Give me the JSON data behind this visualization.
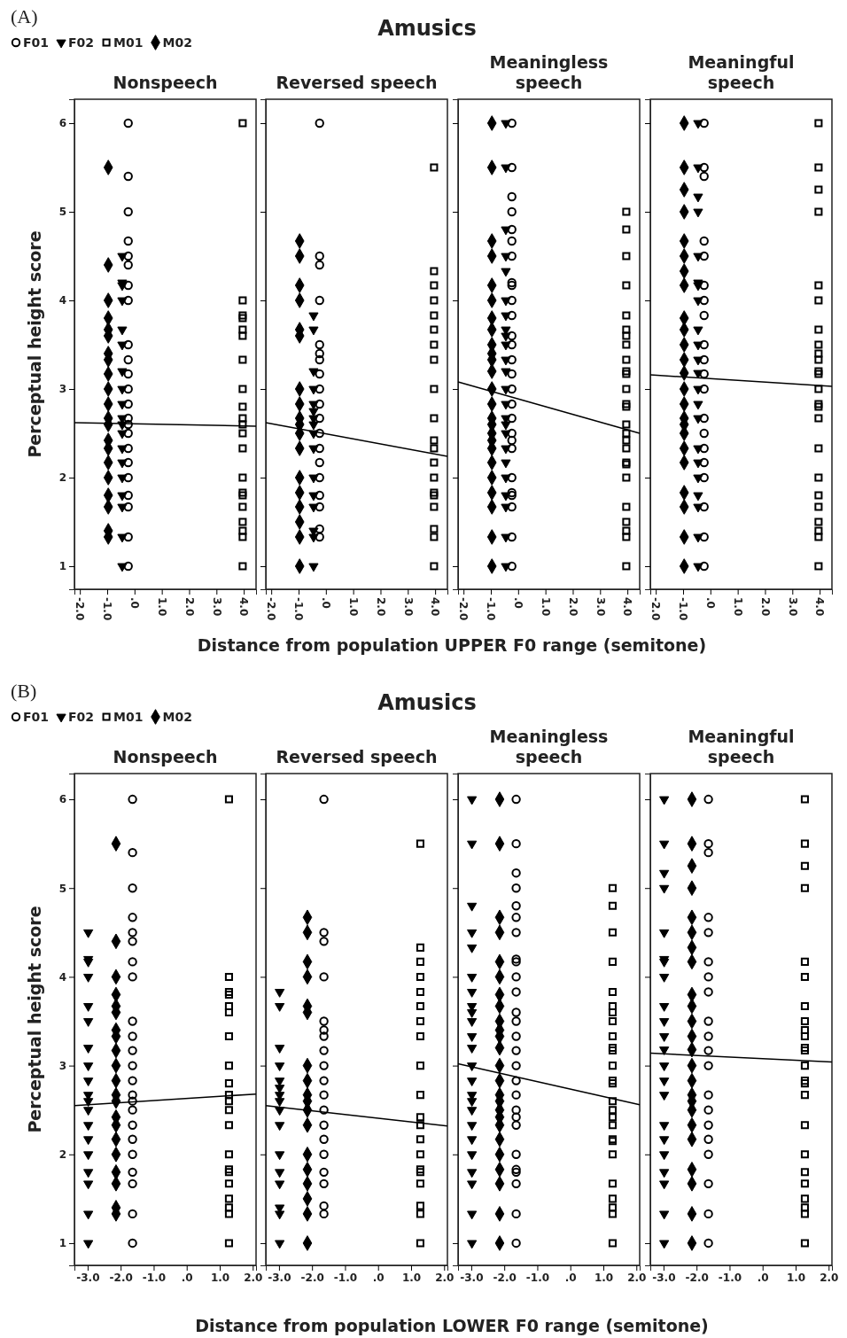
{
  "chart_data": [
    {
      "type": "scatter",
      "subtitle": "Nonspeech",
      "xlabel": "Distance from population UPPER F0 range (semitone)",
      "ylabel": "Perceptual height score",
      "annotations": [
        "(A)"
      ],
      "legend": "top left",
      "xlim": [
        -2.2,
        4.45
      ],
      "xticks": [
        {
          "value": -2,
          "label": "-2.0"
        },
        {
          "value": -1,
          "label": "-1.0"
        },
        {
          "value": 0,
          "label": ".0"
        },
        {
          "value": 1,
          "label": "1.0"
        },
        {
          "value": 2,
          "label": "2.0"
        },
        {
          "value": 3,
          "label": "3.0"
        },
        {
          "value": 4,
          "label": "4.0"
        }
      ],
      "ylim": [
        0.74,
        6.27
      ],
      "yticks": [
        1,
        2,
        3,
        4,
        5,
        6
      ],
      "series": [
        {
          "name": "F01",
          "color": "#000000",
          "marker": "circle",
          "x": [
            -0.23,
            -0.23,
            -0.23,
            -0.23,
            -0.23,
            -0.23,
            -0.23,
            -0.23,
            -0.23,
            -0.23,
            -0.23,
            -0.23,
            -0.23,
            -0.23,
            -0.23,
            -0.23,
            -0.23,
            -0.23,
            -0.23,
            -0.23,
            -0.23,
            -0.23,
            -0.23
          ],
          "values": [
            6,
            5.4,
            5,
            4.67,
            4.5,
            4.4,
            4.17,
            4,
            3.5,
            3.33,
            3.17,
            3,
            2.83,
            2.67,
            2.6,
            2.5,
            2.33,
            2.17,
            2,
            1.8,
            1.67,
            1.33,
            1
          ]
        },
        {
          "name": "F02",
          "color": "#000000",
          "marker": "triangle",
          "x": [
            -0.45,
            -0.45,
            -0.45,
            -0.45,
            -0.45,
            -0.45,
            -0.45,
            -0.45,
            -0.45,
            -0.45,
            -0.45,
            -0.45,
            -0.45,
            -0.45,
            -0.45,
            -0.45,
            -0.45,
            -0.45,
            -0.45
          ],
          "values": [
            4.5,
            4.2,
            4.17,
            4,
            3.67,
            3.5,
            3.2,
            3,
            2.83,
            2.67,
            2.6,
            2.5,
            2.33,
            2.17,
            2,
            1.8,
            1.67,
            1.33,
            1
          ]
        },
        {
          "name": "M01",
          "color": "#000000",
          "marker": "square",
          "x": [
            3.96,
            3.96,
            3.96,
            3.96,
            3.96,
            3.96,
            3.96,
            3.96,
            3.96,
            3.96,
            3.96,
            3.96,
            3.96,
            3.96,
            3.96,
            3.96,
            3.96,
            3.96,
            3.96,
            3.96,
            3.96
          ],
          "values": [
            6,
            4,
            3.83,
            3.8,
            3.67,
            3.6,
            3.33,
            3,
            2.8,
            2.67,
            2.6,
            2.5,
            2.33,
            2,
            1.83,
            1.8,
            1.67,
            1.5,
            1.4,
            1.33,
            1
          ]
        },
        {
          "name": "M02",
          "color": "#000000",
          "marker": "diamond",
          "x": [
            -0.96,
            -0.96,
            -0.96,
            -0.96,
            -0.96,
            -0.96,
            -0.96,
            -0.96,
            -0.96,
            -0.96,
            -0.96,
            -0.96,
            -0.96,
            -0.96,
            -0.96,
            -0.96,
            -0.96,
            -0.96,
            -0.96,
            -0.96,
            -0.96
          ],
          "values": [
            5.5,
            4.4,
            4,
            3.8,
            3.67,
            3.6,
            3.4,
            3.33,
            3.17,
            3,
            2.83,
            2.67,
            2.6,
            2.42,
            2.33,
            2.17,
            2,
            1.8,
            1.67,
            1.4,
            1.33
          ]
        },
        {
          "type": "line",
          "color": "#000000",
          "x": [
            -2.2,
            4.45
          ],
          "values": [
            2.62,
            2.58
          ]
        }
      ]
    },
    {
      "type": "scatter",
      "title": "Amusics",
      "subtitle": "Reversed speech",
      "tick_labels": "x",
      "xlim": [
        -2.2,
        4.45
      ],
      "xticks": [
        {
          "value": -2,
          "label": "-2.0"
        },
        {
          "value": -1,
          "label": "-1.0"
        },
        {
          "value": 0,
          "label": ".0"
        },
        {
          "value": 1,
          "label": "1.0"
        },
        {
          "value": 2,
          "label": "2.0"
        },
        {
          "value": 3,
          "label": "3.0"
        },
        {
          "value": 4,
          "label": "4.0"
        }
      ],
      "ylim": [
        0.74,
        6.27
      ],
      "yticks": [
        1,
        2,
        3,
        4,
        5,
        6
      ],
      "series": [
        {
          "color": "#000000",
          "marker": "circle",
          "x": [
            -0.23,
            -0.23,
            -0.23,
            -0.23,
            -0.23,
            -0.23,
            -0.23,
            -0.23,
            -0.23,
            -0.23,
            -0.23,
            -0.23,
            -0.23,
            -0.23,
            -0.23,
            -0.23,
            -0.23,
            -0.23,
            -0.23
          ],
          "values": [
            6,
            4.5,
            4.4,
            4,
            3.5,
            3.4,
            3.33,
            3.17,
            3,
            2.83,
            2.67,
            2.5,
            2.33,
            2.17,
            2,
            1.8,
            1.67,
            1.42,
            1.33
          ]
        },
        {
          "color": "#000000",
          "marker": "triangle",
          "x": [
            -0.45,
            -0.45,
            -0.45,
            -0.45,
            -0.45,
            -0.45,
            -0.45,
            -0.45,
            -0.45,
            -0.45,
            -0.45,
            -0.45,
            -0.45,
            -0.45,
            -0.45,
            -0.45
          ],
          "values": [
            3.83,
            3.67,
            3.2,
            3,
            2.83,
            2.75,
            2.67,
            2.6,
            2.5,
            2.33,
            2,
            1.8,
            1.67,
            1.4,
            1.33,
            1
          ]
        },
        {
          "color": "#000000",
          "marker": "square",
          "x": [
            3.96,
            3.96,
            3.96,
            3.96,
            3.96,
            3.96,
            3.96,
            3.96,
            3.96,
            3.96,
            3.96,
            3.96,
            3.96,
            3.96,
            3.96,
            3.96,
            3.96,
            3.96,
            3.96,
            3.96
          ],
          "values": [
            5.5,
            4.33,
            4.17,
            4,
            3.83,
            3.67,
            3.5,
            3.33,
            3,
            2.67,
            2.42,
            2.33,
            2.17,
            2,
            1.83,
            1.8,
            1.67,
            1.42,
            1.33,
            1
          ]
        },
        {
          "color": "#000000",
          "marker": "diamond",
          "x": [
            -0.96,
            -0.96,
            -0.96,
            -0.96,
            -0.96,
            -0.96,
            -0.96,
            -0.96,
            -0.96,
            -0.96,
            -0.96,
            -0.96,
            -0.96,
            -0.96,
            -0.96,
            -0.96,
            -0.96,
            -0.96
          ],
          "values": [
            4.67,
            4.5,
            4.17,
            4,
            3.67,
            3.6,
            3,
            2.83,
            2.67,
            2.6,
            2.5,
            2.33,
            2,
            1.83,
            1.67,
            1.5,
            1.33,
            1
          ]
        },
        {
          "type": "line",
          "color": "#000000",
          "x": [
            -2.2,
            4.45
          ],
          "values": [
            2.62,
            2.24
          ]
        }
      ]
    },
    {
      "type": "scatter",
      "subtitle": "Meaningless speech",
      "tick_labels": "x",
      "xlim": [
        -2.2,
        4.45
      ],
      "xticks": [
        {
          "value": -2,
          "label": "-2.0"
        },
        {
          "value": -1,
          "label": "-1.0"
        },
        {
          "value": 0,
          "label": ".0"
        },
        {
          "value": 1,
          "label": "1.0"
        },
        {
          "value": 2,
          "label": "2.0"
        },
        {
          "value": 3,
          "label": "3.0"
        },
        {
          "value": 4,
          "label": "4.0"
        }
      ],
      "ylim": [
        0.74,
        6.27
      ],
      "yticks": [
        1,
        2,
        3,
        4,
        5,
        6
      ],
      "series": [
        {
          "color": "#000000",
          "marker": "circle",
          "x": [
            -0.23,
            -0.23,
            -0.23,
            -0.23,
            -0.23,
            -0.23,
            -0.23,
            -0.23,
            -0.23,
            -0.23,
            -0.23,
            -0.23,
            -0.23,
            -0.23,
            -0.23,
            -0.23,
            -0.23,
            -0.23,
            -0.23,
            -0.23,
            -0.23,
            -0.23,
            -0.23,
            -0.23,
            -0.23,
            -0.23,
            -0.23
          ],
          "values": [
            6,
            5.5,
            5.17,
            5,
            4.8,
            4.67,
            4.5,
            4.2,
            4.17,
            4,
            3.83,
            3.6,
            3.5,
            3.33,
            3.17,
            3,
            2.83,
            2.67,
            2.5,
            2.42,
            2.33,
            2,
            1.83,
            1.8,
            1.67,
            1.33,
            1
          ]
        },
        {
          "color": "#000000",
          "marker": "triangle",
          "x": [
            -0.45,
            -0.45,
            -0.45,
            -0.45,
            -0.45,
            -0.45,
            -0.45,
            -0.45,
            -0.45,
            -0.45,
            -0.45,
            -0.45,
            -0.45,
            -0.45,
            -0.45,
            -0.45,
            -0.45,
            -0.45,
            -0.45,
            -0.45,
            -0.45,
            -0.45,
            -0.45,
            -0.45
          ],
          "values": [
            6,
            5.5,
            4.8,
            4.5,
            4.33,
            4,
            3.83,
            3.67,
            3.6,
            3.5,
            3.33,
            3.2,
            3,
            2.83,
            2.67,
            2.6,
            2.5,
            2.33,
            2.17,
            2,
            1.8,
            1.67,
            1.33,
            1
          ]
        },
        {
          "color": "#000000",
          "marker": "square",
          "x": [
            3.96,
            3.96,
            3.96,
            3.96,
            3.96,
            3.96,
            3.96,
            3.96,
            3.96,
            3.96,
            3.96,
            3.96,
            3.96,
            3.96,
            3.96,
            3.96,
            3.96,
            3.96,
            3.96,
            3.96,
            3.96,
            3.96,
            3.96,
            3.96,
            3.96,
            3.96
          ],
          "values": [
            5,
            4.8,
            4.5,
            4.17,
            3.83,
            3.67,
            3.6,
            3.5,
            3.33,
            3.2,
            3.17,
            3,
            2.83,
            2.8,
            2.6,
            2.5,
            2.42,
            2.33,
            2.17,
            2.15,
            2,
            1.67,
            1.5,
            1.4,
            1.33,
            1
          ]
        },
        {
          "color": "#000000",
          "marker": "diamond",
          "x": [
            -0.96,
            -0.96,
            -0.96,
            -0.96,
            -0.96,
            -0.96,
            -0.96,
            -0.96,
            -0.96,
            -0.96,
            -0.96,
            -0.96,
            -0.96,
            -0.96,
            -0.96,
            -0.96,
            -0.96,
            -0.96,
            -0.96,
            -0.96,
            -0.96,
            -0.96,
            -0.96,
            -0.96,
            -0.96
          ],
          "values": [
            6,
            5.5,
            4.67,
            4.5,
            4.17,
            4,
            3.8,
            3.67,
            3.5,
            3.4,
            3.33,
            3.2,
            3,
            2.83,
            2.67,
            2.6,
            2.5,
            2.42,
            2.33,
            2.17,
            2,
            1.83,
            1.67,
            1.33,
            1
          ]
        },
        {
          "type": "line",
          "color": "#000000",
          "x": [
            -2.2,
            4.45
          ],
          "values": [
            3.08,
            2.5
          ]
        }
      ]
    },
    {
      "type": "scatter",
      "subtitle": "Meaningful speech",
      "tick_labels": "x",
      "xlim": [
        -2.2,
        4.45
      ],
      "xticks": [
        {
          "value": -2,
          "label": "-2.0"
        },
        {
          "value": -1,
          "label": "-1.0"
        },
        {
          "value": 0,
          "label": ".0"
        },
        {
          "value": 1,
          "label": "1.0"
        },
        {
          "value": 2,
          "label": "2.0"
        },
        {
          "value": 3,
          "label": "3.0"
        },
        {
          "value": 4,
          "label": "4.0"
        }
      ],
      "ylim": [
        0.74,
        6.27
      ],
      "yticks": [
        1,
        2,
        3,
        4,
        5,
        6
      ],
      "series": [
        {
          "color": "#000000",
          "marker": "circle",
          "x": [
            -0.23,
            -0.23,
            -0.23,
            -0.23,
            -0.23,
            -0.23,
            -0.23,
            -0.23,
            -0.23,
            -0.23,
            -0.23,
            -0.23,
            -0.23,
            -0.23,
            -0.23,
            -0.23,
            -0.23,
            -0.23,
            -0.23,
            -0.23
          ],
          "values": [
            6,
            5.5,
            5.4,
            4.67,
            4.5,
            4.17,
            4,
            3.83,
            3.5,
            3.33,
            3.17,
            3,
            2.67,
            2.5,
            2.33,
            2.17,
            2,
            1.67,
            1.33,
            1
          ]
        },
        {
          "color": "#000000",
          "marker": "triangle",
          "x": [
            -0.45,
            -0.45,
            -0.45,
            -0.45,
            -0.45,
            -0.45,
            -0.45,
            -0.45,
            -0.45,
            -0.45,
            -0.45,
            -0.45,
            -0.45,
            -0.45,
            -0.45,
            -0.45,
            -0.45,
            -0.45,
            -0.45,
            -0.45,
            -0.45,
            -0.45
          ],
          "values": [
            6,
            5.5,
            5.17,
            5,
            4.5,
            4.2,
            4.17,
            4,
            3.67,
            3.5,
            3.33,
            3.18,
            3,
            2.83,
            2.67,
            2.33,
            2.17,
            2,
            1.8,
            1.67,
            1.33,
            1
          ]
        },
        {
          "color": "#000000",
          "marker": "square",
          "x": [
            3.96,
            3.96,
            3.96,
            3.96,
            3.96,
            3.96,
            3.96,
            3.96,
            3.96,
            3.96,
            3.96,
            3.96,
            3.96,
            3.96,
            3.96,
            3.96,
            3.96,
            3.96,
            3.96,
            3.96,
            3.96,
            3.96,
            3.96,
            3.96
          ],
          "values": [
            6,
            5.5,
            5.25,
            5,
            4.17,
            4,
            3.67,
            3.5,
            3.4,
            3.33,
            3.2,
            3.17,
            3,
            2.83,
            2.8,
            2.67,
            2.33,
            2,
            1.8,
            1.67,
            1.5,
            1.4,
            1.33,
            1
          ]
        },
        {
          "color": "#000000",
          "marker": "diamond",
          "x": [
            -0.96,
            -0.96,
            -0.96,
            -0.96,
            -0.96,
            -0.96,
            -0.96,
            -0.96,
            -0.96,
            -0.96,
            -0.96,
            -0.96,
            -0.96,
            -0.96,
            -0.96,
            -0.96,
            -0.96,
            -0.96,
            -0.96,
            -0.96,
            -0.96,
            -0.96,
            -0.96,
            -0.96
          ],
          "values": [
            6,
            5.5,
            5.25,
            5,
            4.67,
            4.5,
            4.33,
            4.17,
            3.8,
            3.67,
            3.5,
            3.33,
            3.18,
            3,
            2.83,
            2.67,
            2.6,
            2.5,
            2.33,
            2.17,
            1.83,
            1.67,
            1.33,
            1
          ]
        },
        {
          "type": "line",
          "color": "#000000",
          "x": [
            -2.2,
            4.45
          ],
          "values": [
            3.16,
            3.03
          ]
        }
      ]
    },
    {
      "type": "scatter",
      "subtitle": "Nonspeech",
      "xlabel": "Distance from population LOWER F0 range (semitone)",
      "ylabel": "Perceptual height score",
      "annotations": [
        "(B)"
      ],
      "legend": "top left",
      "xlim": [
        -3.4,
        2.1
      ],
      "xticks": [
        {
          "value": -3,
          "label": "-3.0"
        },
        {
          "value": -2,
          "label": "-2.0"
        },
        {
          "value": -1,
          "label": "-1.0"
        },
        {
          "value": 0,
          "label": ".0"
        },
        {
          "value": 1,
          "label": "1.0"
        },
        {
          "value": 2,
          "label": "2.0"
        }
      ],
      "ylim": [
        0.75,
        6.29
      ],
      "yticks": [
        1,
        2,
        3,
        4,
        5,
        6
      ],
      "series": [
        {
          "name": "F01",
          "color": "#000000",
          "marker": "circle",
          "x": [
            -1.64,
            -1.64,
            -1.64,
            -1.64,
            -1.64,
            -1.64,
            -1.64,
            -1.64,
            -1.64,
            -1.64,
            -1.64,
            -1.64,
            -1.64,
            -1.64,
            -1.64,
            -1.64,
            -1.64,
            -1.64,
            -1.64,
            -1.64,
            -1.64,
            -1.64,
            -1.64
          ],
          "values": [
            6,
            5.4,
            5,
            4.67,
            4.5,
            4.4,
            4.17,
            4,
            3.5,
            3.33,
            3.17,
            3,
            2.83,
            2.67,
            2.6,
            2.5,
            2.33,
            2.17,
            2,
            1.8,
            1.67,
            1.33,
            1
          ]
        },
        {
          "name": "F02",
          "color": "#000000",
          "marker": "triangle",
          "x": [
            -2.98,
            -2.98,
            -2.98,
            -2.98,
            -2.98,
            -2.98,
            -2.98,
            -2.98,
            -2.98,
            -2.98,
            -2.98,
            -2.98,
            -2.98,
            -2.98,
            -2.98,
            -2.98,
            -2.98,
            -2.98,
            -2.98
          ],
          "values": [
            4.5,
            4.2,
            4.17,
            4,
            3.67,
            3.5,
            3.2,
            3,
            2.83,
            2.67,
            2.6,
            2.5,
            2.33,
            2.17,
            2,
            1.8,
            1.67,
            1.33,
            1
          ]
        },
        {
          "name": "M01",
          "color": "#000000",
          "marker": "square",
          "x": [
            1.28,
            1.28,
            1.28,
            1.28,
            1.28,
            1.28,
            1.28,
            1.28,
            1.28,
            1.28,
            1.28,
            1.28,
            1.28,
            1.28,
            1.28,
            1.28,
            1.28,
            1.28,
            1.28,
            1.28,
            1.28
          ],
          "values": [
            6,
            4,
            3.83,
            3.8,
            3.67,
            3.6,
            3.33,
            3,
            2.8,
            2.67,
            2.6,
            2.5,
            2.33,
            2,
            1.83,
            1.8,
            1.67,
            1.5,
            1.4,
            1.33,
            1
          ]
        },
        {
          "name": "M02",
          "color": "#000000",
          "marker": "diamond",
          "x": [
            -2.14,
            -2.14,
            -2.14,
            -2.14,
            -2.14,
            -2.14,
            -2.14,
            -2.14,
            -2.14,
            -2.14,
            -2.14,
            -2.14,
            -2.14,
            -2.14,
            -2.14,
            -2.14,
            -2.14,
            -2.14,
            -2.14,
            -2.14,
            -2.14
          ],
          "values": [
            5.5,
            4.4,
            4,
            3.8,
            3.67,
            3.6,
            3.4,
            3.33,
            3.17,
            3,
            2.83,
            2.67,
            2.6,
            2.42,
            2.33,
            2.17,
            2,
            1.8,
            1.67,
            1.4,
            1.33
          ]
        },
        {
          "type": "line",
          "color": "#000000",
          "x": [
            -3.4,
            2.1
          ],
          "values": [
            2.55,
            2.68
          ]
        }
      ]
    },
    {
      "type": "scatter",
      "title": "Amusics",
      "subtitle": "Reversed speech",
      "tick_labels": "x",
      "xlim": [
        -3.4,
        2.1
      ],
      "xticks": [
        {
          "value": -3,
          "label": "-3.0"
        },
        {
          "value": -2,
          "label": "-2.0"
        },
        {
          "value": -1,
          "label": "-1.0"
        },
        {
          "value": 0,
          "label": ".0"
        },
        {
          "value": 1,
          "label": "1.0"
        },
        {
          "value": 2,
          "label": "2.0"
        }
      ],
      "ylim": [
        0.75,
        6.29
      ],
      "yticks": [
        1,
        2,
        3,
        4,
        5,
        6
      ],
      "series": [
        {
          "color": "#000000",
          "marker": "circle",
          "x": [
            -1.64,
            -1.64,
            -1.64,
            -1.64,
            -1.64,
            -1.64,
            -1.64,
            -1.64,
            -1.64,
            -1.64,
            -1.64,
            -1.64,
            -1.64,
            -1.64,
            -1.64,
            -1.64,
            -1.64,
            -1.64,
            -1.64
          ],
          "values": [
            6,
            4.5,
            4.4,
            4,
            3.5,
            3.4,
            3.33,
            3.17,
            3,
            2.83,
            2.67,
            2.5,
            2.33,
            2.17,
            2,
            1.8,
            1.67,
            1.42,
            1.33
          ]
        },
        {
          "color": "#000000",
          "marker": "triangle",
          "x": [
            -2.98,
            -2.98,
            -2.98,
            -2.98,
            -2.98,
            -2.98,
            -2.98,
            -2.98,
            -2.98,
            -2.98,
            -2.98,
            -2.98,
            -2.98,
            -2.98,
            -2.98,
            -2.98
          ],
          "values": [
            3.83,
            3.67,
            3.2,
            3,
            2.83,
            2.75,
            2.67,
            2.6,
            2.5,
            2.33,
            2,
            1.8,
            1.67,
            1.4,
            1.33,
            1
          ]
        },
        {
          "color": "#000000",
          "marker": "square",
          "x": [
            1.28,
            1.28,
            1.28,
            1.28,
            1.28,
            1.28,
            1.28,
            1.28,
            1.28,
            1.28,
            1.28,
            1.28,
            1.28,
            1.28,
            1.28,
            1.28,
            1.28,
            1.28,
            1.28,
            1.28
          ],
          "values": [
            5.5,
            4.33,
            4.17,
            4,
            3.83,
            3.67,
            3.5,
            3.33,
            3,
            2.67,
            2.42,
            2.33,
            2.17,
            2,
            1.83,
            1.8,
            1.67,
            1.42,
            1.33,
            1
          ]
        },
        {
          "color": "#000000",
          "marker": "diamond",
          "x": [
            -2.14,
            -2.14,
            -2.14,
            -2.14,
            -2.14,
            -2.14,
            -2.14,
            -2.14,
            -2.14,
            -2.14,
            -2.14,
            -2.14,
            -2.14,
            -2.14,
            -2.14,
            -2.14,
            -2.14,
            -2.14
          ],
          "values": [
            4.67,
            4.5,
            4.17,
            4,
            3.67,
            3.6,
            3,
            2.83,
            2.67,
            2.6,
            2.5,
            2.33,
            2,
            1.83,
            1.67,
            1.5,
            1.33,
            1
          ]
        },
        {
          "type": "line",
          "color": "#000000",
          "x": [
            -3.4,
            2.1
          ],
          "values": [
            2.55,
            2.32
          ]
        }
      ]
    },
    {
      "type": "scatter",
      "subtitle": "Meaningless speech",
      "tick_labels": "x",
      "xlim": [
        -3.4,
        2.1
      ],
      "xticks": [
        {
          "value": -3,
          "label": "-3.0"
        },
        {
          "value": -2,
          "label": "-2.0"
        },
        {
          "value": -1,
          "label": "-1.0"
        },
        {
          "value": 0,
          "label": ".0"
        },
        {
          "value": 1,
          "label": "1.0"
        },
        {
          "value": 2,
          "label": "2.0"
        }
      ],
      "ylim": [
        0.75,
        6.29
      ],
      "yticks": [
        1,
        2,
        3,
        4,
        5,
        6
      ],
      "series": [
        {
          "color": "#000000",
          "marker": "circle",
          "x": [
            -1.64,
            -1.64,
            -1.64,
            -1.64,
            -1.64,
            -1.64,
            -1.64,
            -1.64,
            -1.64,
            -1.64,
            -1.64,
            -1.64,
            -1.64,
            -1.64,
            -1.64,
            -1.64,
            -1.64,
            -1.64,
            -1.64,
            -1.64,
            -1.64,
            -1.64,
            -1.64,
            -1.64,
            -1.64,
            -1.64,
            -1.64
          ],
          "values": [
            6,
            5.5,
            5.17,
            5,
            4.8,
            4.67,
            4.5,
            4.2,
            4.17,
            4,
            3.83,
            3.6,
            3.5,
            3.33,
            3.17,
            3,
            2.83,
            2.67,
            2.5,
            2.42,
            2.33,
            2,
            1.83,
            1.8,
            1.67,
            1.33,
            1
          ]
        },
        {
          "color": "#000000",
          "marker": "triangle",
          "x": [
            -2.98,
            -2.98,
            -2.98,
            -2.98,
            -2.98,
            -2.98,
            -2.98,
            -2.98,
            -2.98,
            -2.98,
            -2.98,
            -2.98,
            -2.98,
            -2.98,
            -2.98,
            -2.98,
            -2.98,
            -2.98,
            -2.98,
            -2.98,
            -2.98,
            -2.98,
            -2.98,
            -2.98
          ],
          "values": [
            6,
            5.5,
            4.8,
            4.5,
            4.33,
            4,
            3.83,
            3.67,
            3.6,
            3.5,
            3.33,
            3.2,
            3,
            2.83,
            2.67,
            2.6,
            2.5,
            2.33,
            2.17,
            2,
            1.8,
            1.67,
            1.33,
            1
          ]
        },
        {
          "color": "#000000",
          "marker": "square",
          "x": [
            1.28,
            1.28,
            1.28,
            1.28,
            1.28,
            1.28,
            1.28,
            1.28,
            1.28,
            1.28,
            1.28,
            1.28,
            1.28,
            1.28,
            1.28,
            1.28,
            1.28,
            1.28,
            1.28,
            1.28,
            1.28,
            1.28,
            1.28,
            1.28,
            1.28,
            1.28
          ],
          "values": [
            5,
            4.8,
            4.5,
            4.17,
            3.83,
            3.67,
            3.6,
            3.5,
            3.33,
            3.2,
            3.17,
            3,
            2.83,
            2.8,
            2.6,
            2.5,
            2.42,
            2.33,
            2.17,
            2.15,
            2,
            1.67,
            1.5,
            1.4,
            1.33,
            1
          ]
        },
        {
          "color": "#000000",
          "marker": "diamond",
          "x": [
            -2.14,
            -2.14,
            -2.14,
            -2.14,
            -2.14,
            -2.14,
            -2.14,
            -2.14,
            -2.14,
            -2.14,
            -2.14,
            -2.14,
            -2.14,
            -2.14,
            -2.14,
            -2.14,
            -2.14,
            -2.14,
            -2.14,
            -2.14,
            -2.14,
            -2.14,
            -2.14,
            -2.14,
            -2.14
          ],
          "values": [
            6,
            5.5,
            4.67,
            4.5,
            4.17,
            4,
            3.8,
            3.67,
            3.5,
            3.4,
            3.33,
            3.2,
            3,
            2.83,
            2.67,
            2.6,
            2.5,
            2.42,
            2.33,
            2.17,
            2,
            1.83,
            1.67,
            1.33,
            1
          ]
        },
        {
          "type": "line",
          "color": "#000000",
          "x": [
            -3.4,
            2.1
          ],
          "values": [
            3.02,
            2.56
          ]
        }
      ]
    },
    {
      "type": "scatter",
      "subtitle": "Meaningful speech",
      "tick_labels": "x",
      "xlim": [
        -3.4,
        2.1
      ],
      "xticks": [
        {
          "value": -3,
          "label": "-3.0"
        },
        {
          "value": -2,
          "label": "-2.0"
        },
        {
          "value": -1,
          "label": "-1.0"
        },
        {
          "value": 0,
          "label": ".0"
        },
        {
          "value": 1,
          "label": "1.0"
        },
        {
          "value": 2,
          "label": "2.0"
        }
      ],
      "ylim": [
        0.75,
        6.29
      ],
      "yticks": [
        1,
        2,
        3,
        4,
        5,
        6
      ],
      "series": [
        {
          "color": "#000000",
          "marker": "circle",
          "x": [
            -1.64,
            -1.64,
            -1.64,
            -1.64,
            -1.64,
            -1.64,
            -1.64,
            -1.64,
            -1.64,
            -1.64,
            -1.64,
            -1.64,
            -1.64,
            -1.64,
            -1.64,
            -1.64,
            -1.64,
            -1.64,
            -1.64,
            -1.64
          ],
          "values": [
            6,
            5.5,
            5.4,
            4.67,
            4.5,
            4.17,
            4,
            3.83,
            3.5,
            3.33,
            3.17,
            3,
            2.67,
            2.5,
            2.33,
            2.17,
            2,
            1.67,
            1.33,
            1
          ]
        },
        {
          "color": "#000000",
          "marker": "triangle",
          "x": [
            -2.98,
            -2.98,
            -2.98,
            -2.98,
            -2.98,
            -2.98,
            -2.98,
            -2.98,
            -2.98,
            -2.98,
            -2.98,
            -2.98,
            -2.98,
            -2.98,
            -2.98,
            -2.98,
            -2.98,
            -2.98,
            -2.98,
            -2.98,
            -2.98,
            -2.98
          ],
          "values": [
            6,
            5.5,
            5.17,
            5,
            4.5,
            4.2,
            4.17,
            4,
            3.67,
            3.5,
            3.33,
            3.18,
            3,
            2.83,
            2.67,
            2.33,
            2.17,
            2,
            1.8,
            1.67,
            1.33,
            1
          ]
        },
        {
          "color": "#000000",
          "marker": "square",
          "x": [
            1.28,
            1.28,
            1.28,
            1.28,
            1.28,
            1.28,
            1.28,
            1.28,
            1.28,
            1.28,
            1.28,
            1.28,
            1.28,
            1.28,
            1.28,
            1.28,
            1.28,
            1.28,
            1.28,
            1.28,
            1.28,
            1.28,
            1.28,
            1.28
          ],
          "values": [
            6,
            5.5,
            5.25,
            5,
            4.17,
            4,
            3.67,
            3.5,
            3.4,
            3.33,
            3.2,
            3.17,
            3,
            2.83,
            2.8,
            2.67,
            2.33,
            2,
            1.8,
            1.67,
            1.5,
            1.4,
            1.33,
            1
          ]
        },
        {
          "color": "#000000",
          "marker": "diamond",
          "x": [
            -2.14,
            -2.14,
            -2.14,
            -2.14,
            -2.14,
            -2.14,
            -2.14,
            -2.14,
            -2.14,
            -2.14,
            -2.14,
            -2.14,
            -2.14,
            -2.14,
            -2.14,
            -2.14,
            -2.14,
            -2.14,
            -2.14,
            -2.14,
            -2.14,
            -2.14,
            -2.14,
            -2.14
          ],
          "values": [
            6,
            5.5,
            5.25,
            5,
            4.67,
            4.5,
            4.33,
            4.17,
            3.8,
            3.67,
            3.5,
            3.33,
            3.18,
            3,
            2.83,
            2.67,
            2.6,
            2.5,
            2.33,
            2.17,
            1.83,
            1.67,
            1.33,
            1
          ]
        },
        {
          "type": "line",
          "color": "#000000",
          "x": [
            -3.4,
            2.1
          ],
          "values": [
            3.14,
            3.04
          ]
        }
      ]
    }
  ]
}
